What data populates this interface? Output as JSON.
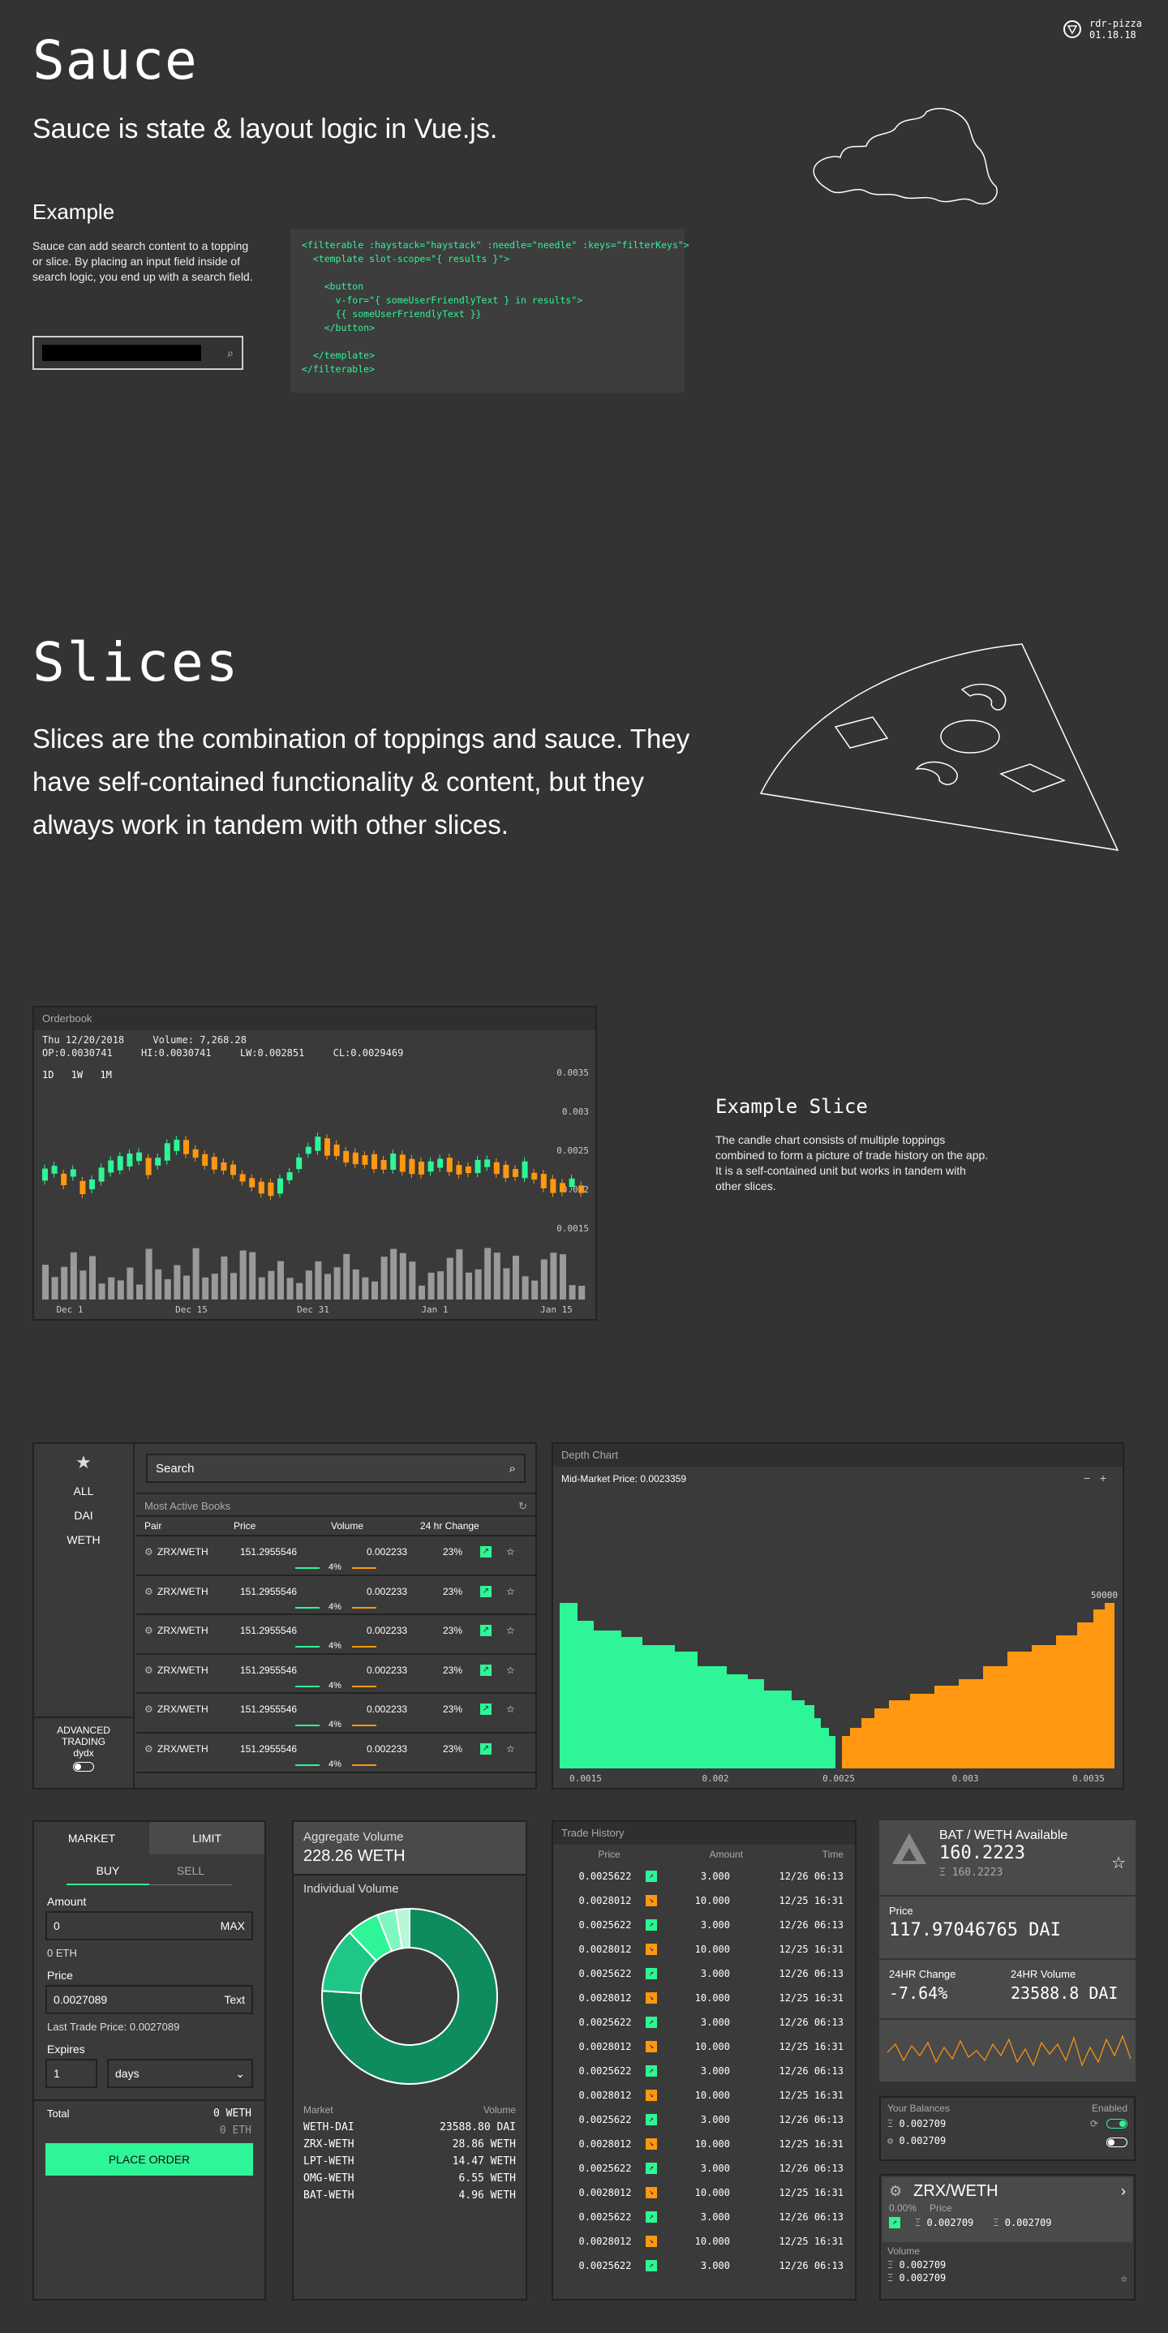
{
  "brand": {
    "name": "rdr-pizza",
    "date": "01.18.18"
  },
  "sauce": {
    "title": "Sauce",
    "subtitle": "Sauce is state & layout logic in Vue.js.",
    "example_title": "Example",
    "example_text": "Sauce can add search content to a topping or slice. By placing an input field inside of search logic, you end up with a search field.",
    "code": "<filterable :haystack=\"haystack\" :needle=\"needle\" :keys=\"filterKeys\">\n  <template slot-scope=\"{ results }\">\n\n    <button\n      v-for=\"{ someUserFriendlyText } in results\">\n      {{ someUserFriendlyText }}\n    </button>\n\n  </template>\n</filterable>"
  },
  "slices": {
    "title": "Slices",
    "text": "Slices are the combination of toppings and sauce. They have self-contained functionality & content, but they always work in tandem with other slices."
  },
  "orderbook": {
    "title": "Orderbook",
    "date": "Thu 12/20/2018",
    "volume": "Volume: 7,268.28",
    "op": "OP:0.0030741",
    "hi": "HI:0.0030741",
    "lw": "LW:0.002851",
    "cl": "CL:0.0029469",
    "ranges": [
      "1D",
      "1W",
      "1M"
    ],
    "y_ticks": [
      "0.0035",
      "0.003",
      "0.0025",
      "0.002",
      "0.0015"
    ],
    "x_ticks": [
      "Dec 1",
      "Dec 15",
      "Dec 31",
      "Jan 1",
      "Jan 15"
    ]
  },
  "example_slice": {
    "title": "Example Slice",
    "text": "The candle chart consists of multiple toppings combined to form a picture of trade history on the app. It is a self-contained unit but works in tandem with other slices."
  },
  "market": {
    "filters": [
      "ALL",
      "DAI",
      "WETH"
    ],
    "advanced": [
      "ADVANCED",
      "TRADING",
      "dydx"
    ],
    "search": "Search",
    "most_active": "Most Active Books",
    "headers": [
      "Pair",
      "Price",
      "Volume",
      "24 hr Change"
    ],
    "rows": [
      {
        "pair": "ZRX/WETH",
        "price": "151.2955546",
        "volume": "0.002233",
        "change": "23%",
        "pct": "4%"
      },
      {
        "pair": "ZRX/WETH",
        "price": "151.2955546",
        "volume": "0.002233",
        "change": "23%",
        "pct": "4%"
      },
      {
        "pair": "ZRX/WETH",
        "price": "151.2955546",
        "volume": "0.002233",
        "change": "23%",
        "pct": "4%"
      },
      {
        "pair": "ZRX/WETH",
        "price": "151.2955546",
        "volume": "0.002233",
        "change": "23%",
        "pct": "4%"
      },
      {
        "pair": "ZRX/WETH",
        "price": "151.2955546",
        "volume": "0.002233",
        "change": "23%",
        "pct": "4%"
      },
      {
        "pair": "ZRX/WETH",
        "price": "151.2955546",
        "volume": "0.002233",
        "change": "23%",
        "pct": "4%"
      }
    ]
  },
  "depth": {
    "title": "Depth Chart",
    "mid": "Mid-Market Price: 0.0023359",
    "y_top": "50000",
    "x_ticks": [
      "0.0015",
      "0.002",
      "0.0025",
      "0.003",
      "0.0035"
    ]
  },
  "order_form": {
    "tabs": [
      "MARKET",
      "LIMIT"
    ],
    "sides": [
      "BUY",
      "SELL"
    ],
    "amount_label": "Amount",
    "amount": "0",
    "max": "MAX",
    "amount_eth": "0 ETH",
    "price_label": "Price",
    "price": "0.0027089",
    "price_suffix": "Text",
    "last_trade": "Last Trade Price: 0.0027089",
    "expires_label": "Expires",
    "expires": "1",
    "expires_unit": "days",
    "total_label": "Total",
    "total_weth": "0 WETH",
    "total_eth": "0 ETH",
    "place": "PLACE ORDER"
  },
  "aggregate": {
    "title": "Aggregate Volume",
    "value": "228.26 WETH",
    "individual": "Individual Volume",
    "market_label": "Market",
    "volume_label": "Volume",
    "rows": [
      {
        "market": "WETH-DAI",
        "volume": "23588.80 DAI"
      },
      {
        "market": "ZRX-WETH",
        "volume": "28.86 WETH"
      },
      {
        "market": "LPT-WETH",
        "volume": "14.47 WETH"
      },
      {
        "market": "OMG-WETH",
        "volume": "6.55 WETH"
      },
      {
        "market": "BAT-WETH",
        "volume": "4.96 WETH"
      }
    ]
  },
  "chart_data": {
    "type": "pie",
    "categories": [
      "WETH-DAI",
      "ZRX-WETH",
      "LPT-WETH",
      "OMG-WETH",
      "BAT-WETH"
    ],
    "values": [
      76,
      12,
      6,
      3.5,
      2.5
    ],
    "colors": [
      "#0e8c5e",
      "#1fc786",
      "#2ef597",
      "#7ff7bf",
      "#b6f8d8"
    ]
  },
  "trade_history": {
    "title": "Trade History",
    "headers": [
      "Price",
      "Amount",
      "Time"
    ],
    "rows": [
      {
        "price": "0.0025622",
        "side": "up",
        "amount": "3.000",
        "time": "12/26 06:13"
      },
      {
        "price": "0.0028012",
        "side": "down",
        "amount": "10.000",
        "time": "12/25 16:31"
      },
      {
        "price": "0.0025622",
        "side": "up",
        "amount": "3.000",
        "time": "12/26 06:13"
      },
      {
        "price": "0.0028012",
        "side": "down",
        "amount": "10.000",
        "time": "12/25 16:31"
      },
      {
        "price": "0.0025622",
        "side": "up",
        "amount": "3.000",
        "time": "12/26 06:13"
      },
      {
        "price": "0.0028012",
        "side": "down",
        "amount": "10.000",
        "time": "12/25 16:31"
      },
      {
        "price": "0.0025622",
        "side": "up",
        "amount": "3.000",
        "time": "12/26 06:13"
      },
      {
        "price": "0.0028012",
        "side": "down",
        "amount": "10.000",
        "time": "12/25 16:31"
      },
      {
        "price": "0.0025622",
        "side": "up",
        "amount": "3.000",
        "time": "12/26 06:13"
      },
      {
        "price": "0.0028012",
        "side": "down",
        "amount": "10.000",
        "time": "12/25 16:31"
      },
      {
        "price": "0.0025622",
        "side": "up",
        "amount": "3.000",
        "time": "12/26 06:13"
      },
      {
        "price": "0.0028012",
        "side": "down",
        "amount": "10.000",
        "time": "12/25 16:31"
      },
      {
        "price": "0.0025622",
        "side": "up",
        "amount": "3.000",
        "time": "12/26 06:13"
      },
      {
        "price": "0.0028012",
        "side": "down",
        "amount": "10.000",
        "time": "12/25 16:31"
      },
      {
        "price": "0.0025622",
        "side": "up",
        "amount": "3.000",
        "time": "12/26 06:13"
      },
      {
        "price": "0.0028012",
        "side": "down",
        "amount": "10.000",
        "time": "12/25 16:31"
      },
      {
        "price": "0.0025622",
        "side": "up",
        "amount": "3.000",
        "time": "12/26 06:13"
      }
    ]
  },
  "bat": {
    "title": "BAT / WETH Available",
    "value": "160.2223",
    "sub": "160.2223",
    "price_label": "Price",
    "price": "117.97046765 DAI",
    "change_label": "24HR Change",
    "change": "-7.64%",
    "volume_label": "24HR Volume",
    "volume": "23588.8 DAI"
  },
  "balances": {
    "title": "Your Balances",
    "enabled": "Enabled",
    "rows": [
      "0.002709",
      "0.002709"
    ]
  },
  "pair_card": {
    "pair": "ZRX/WETH",
    "pct": "0.00%",
    "price_label": "Price",
    "p1": "0.002709",
    "p2": "0.002709",
    "volume_label": "Volume",
    "v1": "0.002709",
    "v2": "0.002709"
  }
}
